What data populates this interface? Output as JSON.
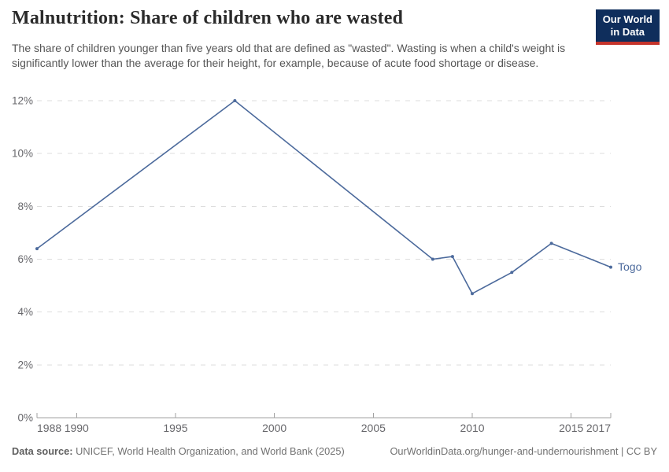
{
  "header": {
    "title": "Malnutrition: Share of children who are wasted",
    "subtitle": "The share of children younger than five years old that are defined as \"wasted\". Wasting is when a child's weight is significantly lower than the average for their height, for example, because of acute food shortage or disease.",
    "logo": {
      "line1": "Our World",
      "line2": "in Data"
    }
  },
  "chart_data": {
    "type": "line",
    "title": "Malnutrition: Share of children who are wasted",
    "series": [
      {
        "name": "Togo",
        "color": "#4C6A9C",
        "x": [
          1988,
          1998,
          2008,
          2009,
          2010,
          2012,
          2014,
          2017
        ],
        "values": [
          6.4,
          12,
          6,
          6.1,
          4.7,
          5.5,
          6.6,
          5.7
        ]
      }
    ],
    "xlim": [
      1988,
      2017
    ],
    "ylim": [
      0,
      12
    ],
    "xticks": [
      1988,
      1990,
      1995,
      2000,
      2005,
      2010,
      2015,
      2017
    ],
    "yticks": [
      0,
      2,
      4,
      6,
      8,
      10,
      12
    ],
    "ytick_suffix": "%",
    "xlabel": "",
    "ylabel": "",
    "grid": "horizontal-dashed",
    "legend": "end-of-line-label"
  },
  "footer": {
    "datasource_label": "Data source:",
    "datasource_text": " UNICEF, World Health Organization, and World Bank (2025)",
    "link_text": "OurWorldinData.org/hunger-and-undernourishment | CC BY"
  },
  "colors": {
    "accent_line": "#4C6A9C",
    "logo_background": "#0F2E5C",
    "logo_stripe": "#C5342B",
    "title_text": "#2B2B2B",
    "subtitle_text": "#555555",
    "tick_text": "#68686C",
    "gridline": "#DDDDDD",
    "axis": "#A1A1A1",
    "footer_text": "#717171"
  }
}
